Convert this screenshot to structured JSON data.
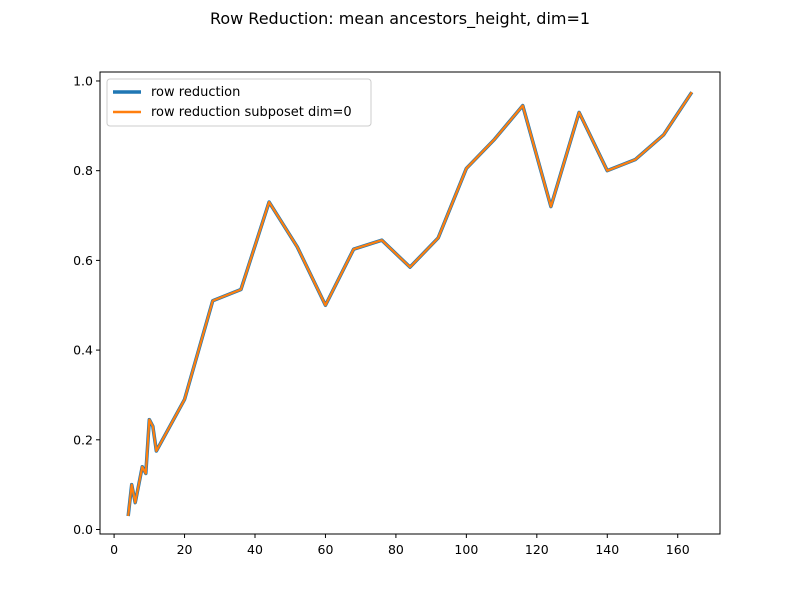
{
  "chart_data": {
    "type": "line",
    "title": "Row Reduction: mean ancestors_height, dim=1",
    "xlabel": "",
    "ylabel": "",
    "xlim": [
      -4,
      172
    ],
    "ylim": [
      -0.01,
      1.02
    ],
    "xticks": [
      0,
      20,
      40,
      60,
      80,
      100,
      120,
      140,
      160
    ],
    "yticks": [
      0.0,
      0.2,
      0.4,
      0.6,
      0.8,
      1.0
    ],
    "xtick_labels": [
      "0",
      "20",
      "40",
      "60",
      "80",
      "100",
      "120",
      "140",
      "160"
    ],
    "ytick_labels": [
      "0.0",
      "0.2",
      "0.4",
      "0.6",
      "0.8",
      "1.0"
    ],
    "grid": false,
    "legend_position": "top-left",
    "x": [
      4,
      5,
      6,
      7,
      8,
      9,
      10,
      11,
      12,
      20,
      28,
      36,
      44,
      52,
      60,
      68,
      76,
      84,
      92,
      100,
      108,
      116,
      124,
      132,
      140,
      148,
      156,
      164
    ],
    "series": [
      {
        "name": "row reduction",
        "color": "#1f77b4",
        "values": [
          0.03,
          0.1,
          0.06,
          0.1,
          0.14,
          0.125,
          0.245,
          0.23,
          0.175,
          0.29,
          0.51,
          0.535,
          0.73,
          0.63,
          0.5,
          0.625,
          0.645,
          0.585,
          0.65,
          0.805,
          0.87,
          0.945,
          0.72,
          0.93,
          0.8,
          0.825,
          0.88,
          0.975
        ]
      },
      {
        "name": "row reduction subposet dim=0",
        "color": "#ff7f0e",
        "values": [
          0.03,
          0.1,
          0.06,
          0.1,
          0.14,
          0.125,
          0.245,
          0.23,
          0.175,
          0.29,
          0.51,
          0.535,
          0.73,
          0.63,
          0.5,
          0.625,
          0.645,
          0.585,
          0.65,
          0.805,
          0.87,
          0.945,
          0.72,
          0.93,
          0.8,
          0.825,
          0.88,
          0.975
        ]
      }
    ]
  }
}
